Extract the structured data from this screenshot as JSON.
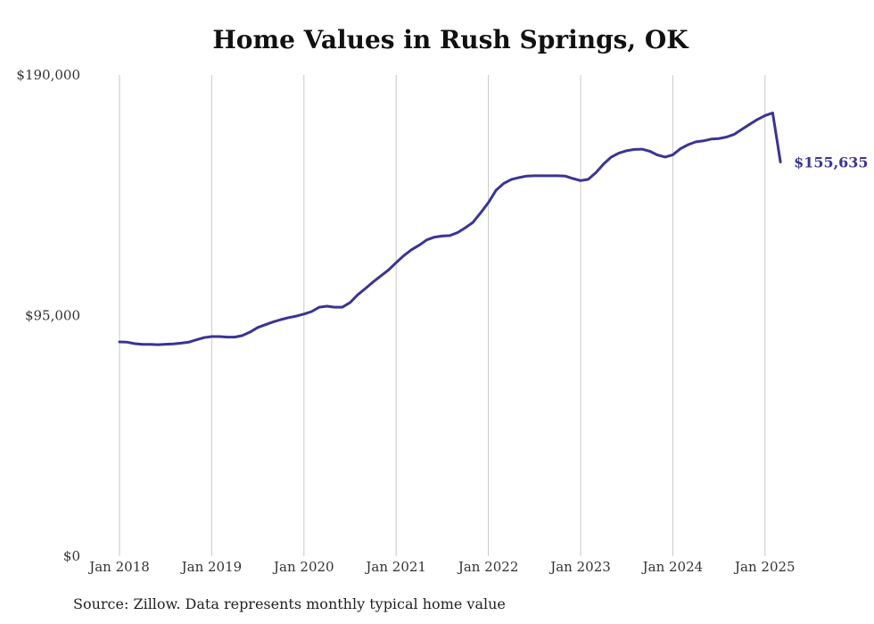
{
  "colors": {
    "line": "#3a3496",
    "grid": "#c8c8c8",
    "text": "#333333"
  },
  "chart_data": {
    "type": "line",
    "title": "Home Values in Rush Springs, OK",
    "xlabel": "",
    "ylabel": "",
    "ylim": [
      0,
      190000
    ],
    "yticks": [
      {
        "value": 0,
        "label": "$0"
      },
      {
        "value": 95000,
        "label": "$95,000"
      },
      {
        "value": 190000,
        "label": "$190,000"
      }
    ],
    "xticks": [
      {
        "value": 2018.0,
        "label": "Jan 2018"
      },
      {
        "value": 2019.0,
        "label": "Jan 2019"
      },
      {
        "value": 2020.0,
        "label": "Jan 2020"
      },
      {
        "value": 2021.0,
        "label": "Jan 2021"
      },
      {
        "value": 2022.0,
        "label": "Jan 2022"
      },
      {
        "value": 2023.0,
        "label": "Jan 2023"
      },
      {
        "value": 2024.0,
        "label": "Jan 2024"
      },
      {
        "value": 2025.0,
        "label": "Jan 2025"
      }
    ],
    "grid": "vertical",
    "end_label": "$155,635",
    "series": [
      {
        "x": [
          2018.0,
          2018.083,
          2018.167,
          2018.25,
          2018.333,
          2018.417,
          2018.5,
          2018.583,
          2018.667,
          2018.75,
          2018.833,
          2018.917,
          2019.0,
          2019.083,
          2019.167,
          2019.25,
          2019.333,
          2019.417,
          2019.5,
          2019.583,
          2019.667,
          2019.75,
          2019.833,
          2019.917,
          2020.0,
          2020.083,
          2020.167,
          2020.25,
          2020.333,
          2020.417,
          2020.5,
          2020.583,
          2020.667,
          2020.75,
          2020.833,
          2020.917,
          2021.0,
          2021.083,
          2021.167,
          2021.25,
          2021.333,
          2021.417,
          2021.5,
          2021.583,
          2021.667,
          2021.75,
          2021.833,
          2021.917,
          2022.0,
          2022.083,
          2022.167,
          2022.25,
          2022.333,
          2022.417,
          2022.5,
          2022.583,
          2022.667,
          2022.75,
          2022.833,
          2022.917,
          2023.0,
          2023.083,
          2023.167,
          2023.25,
          2023.333,
          2023.417,
          2023.5,
          2023.583,
          2023.667,
          2023.75,
          2023.833,
          2023.917,
          2024.0,
          2024.083,
          2024.167,
          2024.25,
          2024.333,
          2024.417,
          2024.5,
          2024.583,
          2024.667,
          2024.75,
          2024.833,
          2024.917,
          2025.0,
          2025.083,
          2025.167
        ],
        "values": [
          84600,
          84500,
          83900,
          83600,
          83600,
          83500,
          83700,
          83800,
          84100,
          84500,
          85400,
          86300,
          86700,
          86700,
          86500,
          86500,
          87100,
          88500,
          90300,
          91400,
          92500,
          93400,
          94200,
          94800,
          95600,
          96600,
          98300,
          98700,
          98300,
          98300,
          100100,
          103200,
          105700,
          108300,
          110600,
          113000,
          115900,
          118700,
          121000,
          122800,
          124900,
          126000,
          126400,
          126600,
          127800,
          129700,
          131800,
          135600,
          139600,
          144500,
          147200,
          148800,
          149500,
          150100,
          150200,
          150200,
          150200,
          150200,
          150100,
          149100,
          148300,
          148800,
          151500,
          154900,
          157600,
          159200,
          160100,
          160600,
          160700,
          159900,
          158400,
          157600,
          158500,
          160900,
          162500,
          163600,
          164000,
          164700,
          164900,
          165500,
          166600,
          168600,
          170500,
          172400,
          174000,
          175000,
          155635
        ]
      }
    ]
  },
  "footer": {
    "source": "Source: Zillow. Data represents monthly typical home value"
  }
}
